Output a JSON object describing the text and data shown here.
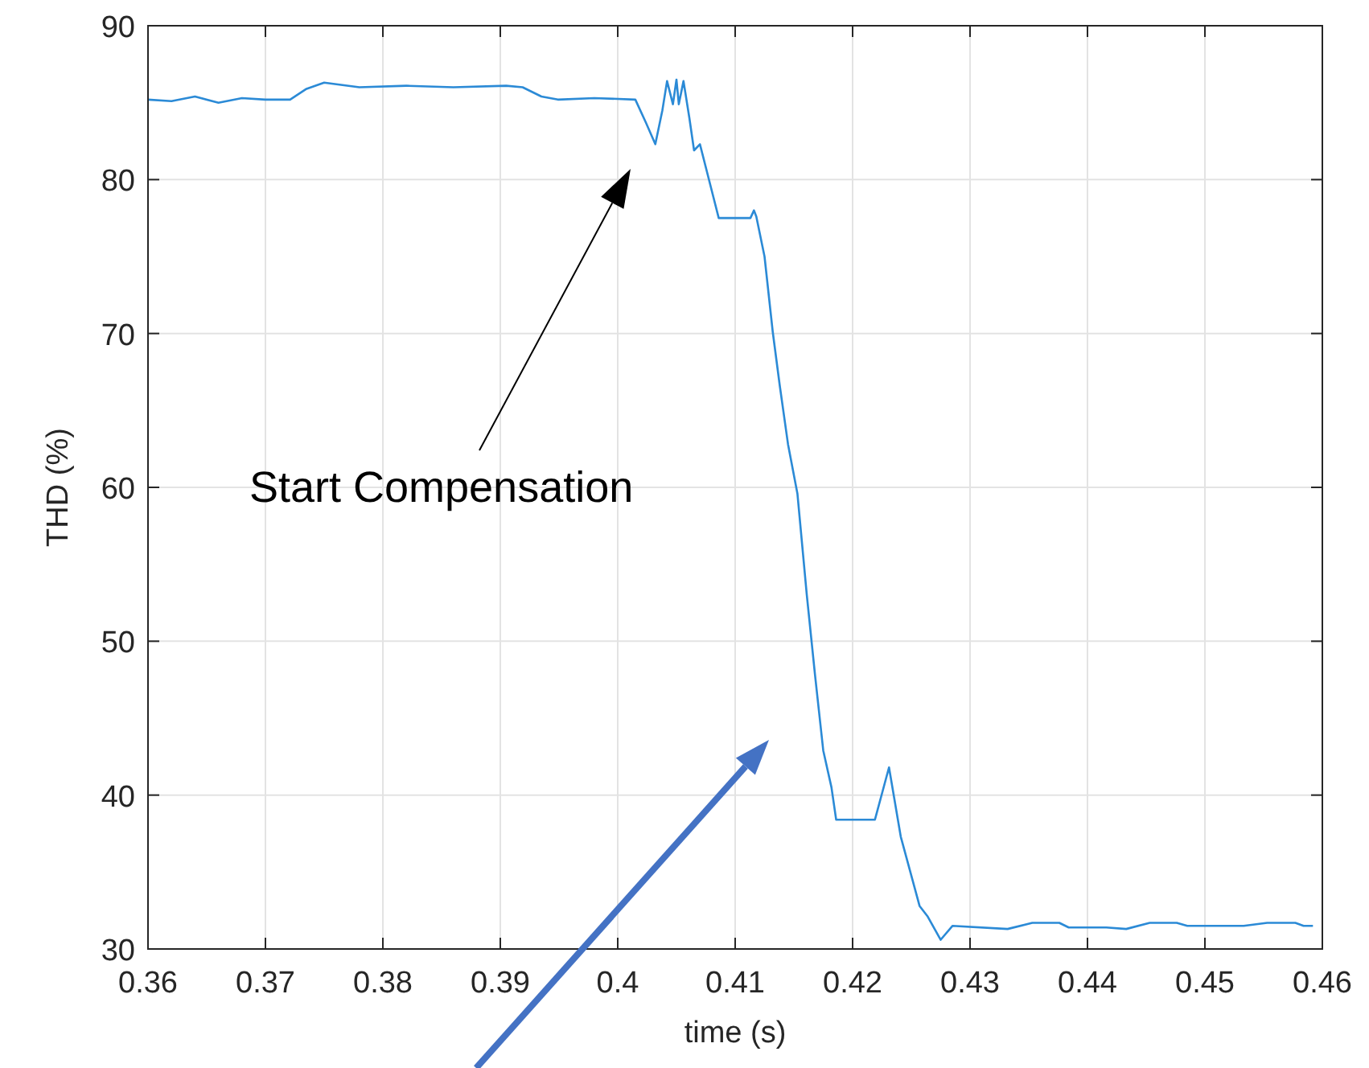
{
  "chart_data": {
    "type": "line",
    "xlabel": "time (s)",
    "ylabel": "THD (%)",
    "x": [
      0.36,
      0.362,
      0.364,
      0.366,
      0.368,
      0.37,
      0.3721,
      0.3735,
      0.375,
      0.378,
      0.382,
      0.386,
      0.3905,
      0.3919,
      0.3935,
      0.3949,
      0.398,
      0.4015,
      0.4024,
      0.4032,
      0.4038,
      0.4042,
      0.4047,
      0.405,
      0.4052,
      0.4056,
      0.4061,
      0.4065,
      0.407,
      0.4077,
      0.4086,
      0.4113,
      0.4116,
      0.4118,
      0.4125,
      0.4132,
      0.4138,
      0.4145,
      0.4153,
      0.4161,
      0.4168,
      0.4175,
      0.4182,
      0.4186,
      0.4219,
      0.4231,
      0.4241,
      0.4257,
      0.4264,
      0.4275,
      0.4285,
      0.4332,
      0.4353,
      0.4376,
      0.4384,
      0.4416,
      0.4433,
      0.4453,
      0.4476,
      0.4485,
      0.4533,
      0.4553,
      0.4577,
      0.4584,
      0.4592
    ],
    "series": [
      {
        "color": "#2b8ad6",
        "values": [
          85.2,
          85.1,
          85.4,
          85.0,
          85.3,
          85.2,
          85.2,
          85.9,
          86.3,
          86.0,
          86.1,
          86.0,
          86.1,
          86.0,
          85.4,
          85.2,
          85.3,
          85.2,
          83.7,
          82.3,
          84.5,
          86.4,
          84.9,
          86.5,
          84.9,
          86.4,
          84.0,
          81.9,
          82.3,
          80.2,
          77.5,
          77.5,
          78.0,
          77.6,
          75.0,
          70.1,
          66.6,
          62.8,
          59.6,
          53.0,
          47.8,
          42.9,
          40.5,
          38.4,
          38.4,
          41.8,
          37.3,
          32.8,
          32.1,
          30.6,
          31.5,
          31.3,
          31.7,
          31.7,
          31.4,
          31.4,
          31.3,
          31.7,
          31.7,
          31.5,
          31.5,
          31.7,
          31.7,
          31.5,
          31.5
        ]
      }
    ],
    "xlim": [
      0.36,
      0.46
    ],
    "xticks": [
      0.36,
      0.37,
      0.38,
      0.39,
      0.4,
      0.41,
      0.42,
      0.43,
      0.44,
      0.45,
      0.46
    ],
    "ylim": [
      30,
      90
    ],
    "yticks": [
      30,
      40,
      50,
      60,
      70,
      80,
      90
    ],
    "grid": true,
    "line_style": "solid",
    "marker": "none",
    "annotations": [
      "Start Compensation"
    ]
  }
}
